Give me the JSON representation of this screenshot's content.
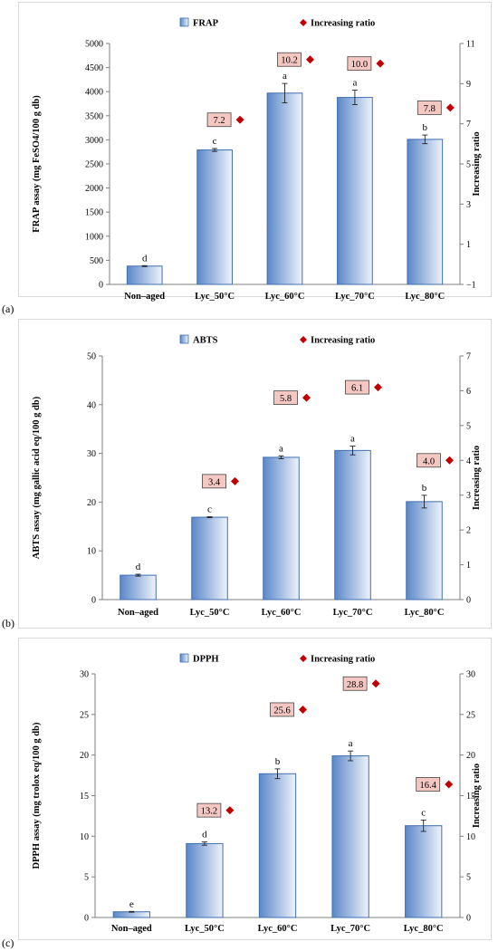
{
  "charts": [
    {
      "panel_label": "(a)",
      "chart_data": {
        "type": "bar",
        "categories": [
          "Non–aged",
          "Lyc_50°C",
          "Lyc_60°C",
          "Lyc_70°C",
          "Lyc_80°C"
        ],
        "series": [
          {
            "name": "FRAP",
            "type": "bar",
            "values": [
              380,
              2790,
              3970,
              3880,
              3010
            ],
            "errors": [
              10,
              30,
              200,
              150,
              90
            ],
            "letters": [
              "d",
              "c",
              "a",
              "a",
              "b"
            ]
          },
          {
            "name": "Increasing ratio",
            "type": "marker",
            "axis": "right",
            "values": [
              null,
              7.2,
              10.2,
              10.0,
              7.8
            ],
            "labels": [
              "",
              "7.2",
              "10.2",
              "10.0",
              "7.8"
            ]
          }
        ],
        "ylabel": "FRAP assay (mg FeSO4/100 g db)",
        "y2label": "Increasing ratio",
        "ylim": [
          0,
          5000
        ],
        "yticks": [
          "0",
          "500",
          "1000",
          "1500",
          "2000",
          "2500",
          "3000",
          "3500",
          "4000",
          "4500",
          "5000"
        ],
        "y2lim": [
          -1,
          11
        ],
        "y2ticks": [
          "−1",
          "1",
          "3",
          "5",
          "7",
          "9",
          "11"
        ],
        "legend_position": "top"
      }
    },
    {
      "panel_label": "(b)",
      "chart_data": {
        "type": "bar",
        "categories": [
          "Non–aged",
          "Lyc_50°C",
          "Lyc_60°C",
          "Lyc_70°C",
          "Lyc_80°C"
        ],
        "series": [
          {
            "name": "ABTS",
            "type": "bar",
            "values": [
              5.0,
              16.9,
              29.2,
              30.6,
              20.1
            ],
            "errors": [
              0.2,
              0.1,
              0.3,
              0.9,
              1.3
            ],
            "letters": [
              "d",
              "c",
              "a",
              "a",
              "b"
            ]
          },
          {
            "name": "Increasing ratio",
            "type": "marker",
            "axis": "right",
            "values": [
              null,
              3.4,
              5.8,
              6.1,
              4.0
            ],
            "labels": [
              "",
              "3.4",
              "5.8",
              "6.1",
              "4.0"
            ]
          }
        ],
        "ylabel": "ABTS assay (mg gallic acid eq/100 g db)",
        "y2label": "Increasing ratio",
        "ylim": [
          0,
          50
        ],
        "yticks": [
          "0",
          "10",
          "20",
          "30",
          "40",
          "50"
        ],
        "y2lim": [
          0,
          7
        ],
        "y2ticks": [
          "0",
          "1",
          "2",
          "3",
          "4",
          "5",
          "6",
          "7"
        ],
        "legend_position": "top"
      }
    },
    {
      "panel_label": "(c)",
      "chart_data": {
        "type": "bar",
        "categories": [
          "Non–aged",
          "Lyc_50°C",
          "Lyc_60°C",
          "Lyc_70°C",
          "Lyc_80°C"
        ],
        "series": [
          {
            "name": "DPPH",
            "type": "bar",
            "values": [
              0.7,
              9.1,
              17.7,
              19.9,
              11.3
            ],
            "errors": [
              0.05,
              0.2,
              0.6,
              0.6,
              0.7
            ],
            "letters": [
              "e",
              "d",
              "b",
              "a",
              "c"
            ]
          },
          {
            "name": "Increasing ratio",
            "type": "marker",
            "axis": "right",
            "values": [
              null,
              13.2,
              25.6,
              28.8,
              16.4
            ],
            "labels": [
              "",
              "13.2",
              "25.6",
              "28.8",
              "16.4"
            ]
          }
        ],
        "ylabel": "DPPH assay (mg trolox eq/100 g db)",
        "y2label": "Increasing ratio",
        "ylim": [
          0,
          30
        ],
        "yticks": [
          "0",
          "5",
          "10",
          "15",
          "20",
          "25",
          "30"
        ],
        "y2lim": [
          0,
          30
        ],
        "y2ticks": [
          "0",
          "5",
          "10",
          "15",
          "20",
          "25",
          "30"
        ],
        "legend_position": "top"
      }
    }
  ],
  "colors": {
    "bar_fill_dark": "#5b87c8",
    "bar_fill_light": "#eef3fb",
    "bar_stroke": "#3f6fb0",
    "marker": "#c00000",
    "ratio_label_bg": "#f4c7c3",
    "axis": "#7f7f7f",
    "panel_border": "#d9d9d9"
  }
}
